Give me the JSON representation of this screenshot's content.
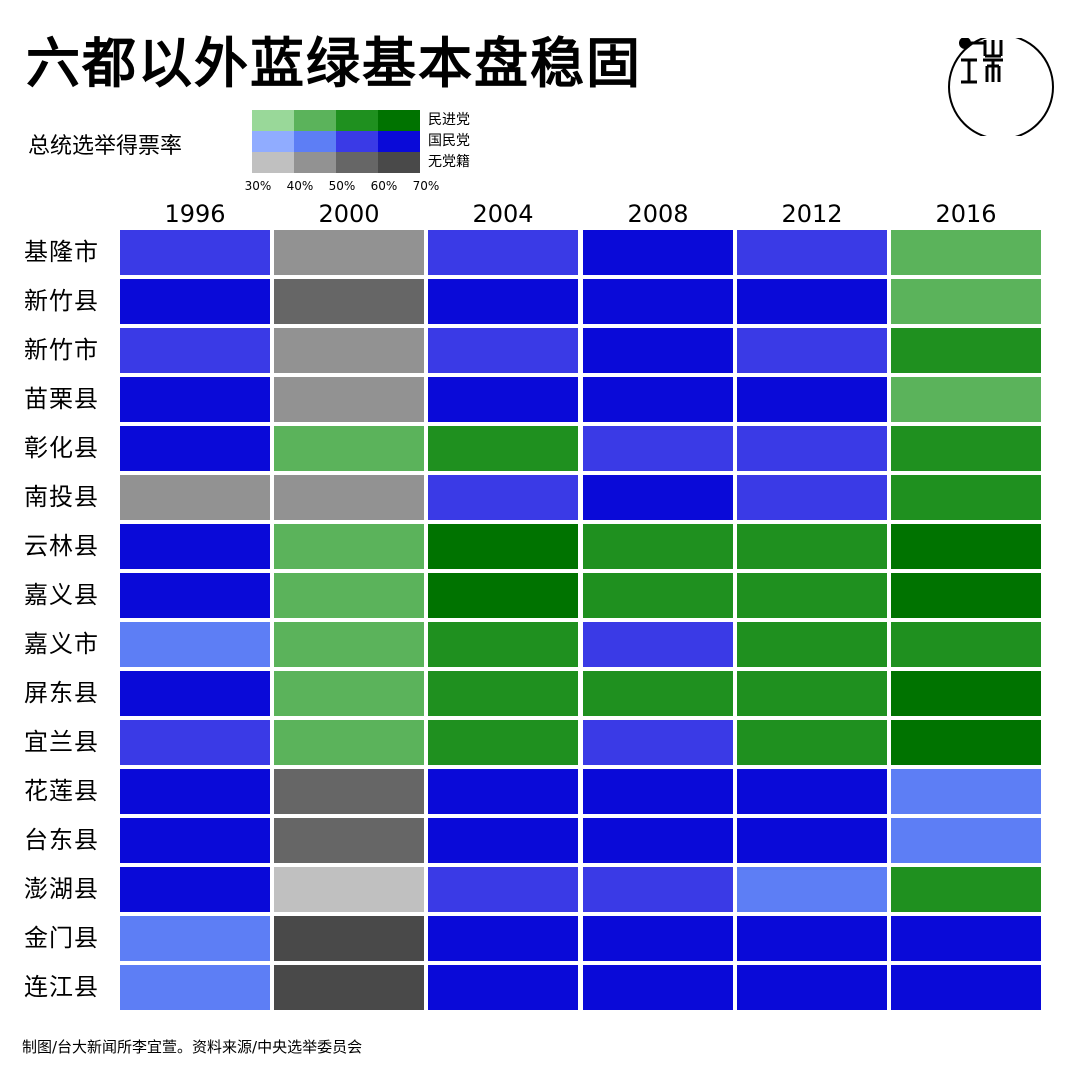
{
  "title": "六都以外蓝绿基本盘稳固",
  "legend": {
    "label": "总统选举得票率",
    "parties": [
      {
        "name": "民进党",
        "colors": [
          "#99d899",
          "#5bb35b",
          "#1f901f",
          "#007300"
        ]
      },
      {
        "name": "国民党",
        "colors": [
          "#90acff",
          "#5d7ef5",
          "#3a3ae6",
          "#0a0ad8"
        ]
      },
      {
        "name": "无党籍",
        "colors": [
          "#c0c0c0",
          "#929292",
          "#666666",
          "#494949"
        ]
      }
    ],
    "ticks": [
      "30%",
      "40%",
      "50%",
      "60%",
      "70%"
    ]
  },
  "footer": "制图/台大新闻所李宜萱。资料来源/中央选举委员会",
  "chart_data": {
    "type": "heatmap",
    "title": "六都以外蓝绿基本盘稳固",
    "x": [
      "1996",
      "2000",
      "2004",
      "2008",
      "2012",
      "2016"
    ],
    "y": [
      "基隆市",
      "新竹县",
      "新竹市",
      "苗栗县",
      "彰化县",
      "南投县",
      "云林县",
      "嘉义县",
      "嘉义市",
      "屏东县",
      "宜兰县",
      "花莲县",
      "台东县",
      "澎湖县",
      "金门县",
      "连江县"
    ],
    "value_encoding": "each cell = [winning party index (0=民进党, 1=国民党, 2=无党籍), vote-share band index (0=30-40%, 1=40-50%, 2=50-60%, 3=60-70%+)]",
    "cells": [
      [
        [
          1,
          2
        ],
        [
          2,
          1
        ],
        [
          1,
          2
        ],
        [
          1,
          3
        ],
        [
          1,
          2
        ],
        [
          0,
          1
        ]
      ],
      [
        [
          1,
          3
        ],
        [
          2,
          2
        ],
        [
          1,
          3
        ],
        [
          1,
          3
        ],
        [
          1,
          3
        ],
        [
          0,
          1
        ]
      ],
      [
        [
          1,
          2
        ],
        [
          2,
          1
        ],
        [
          1,
          2
        ],
        [
          1,
          3
        ],
        [
          1,
          2
        ],
        [
          0,
          2
        ]
      ],
      [
        [
          1,
          3
        ],
        [
          2,
          1
        ],
        [
          1,
          3
        ],
        [
          1,
          3
        ],
        [
          1,
          3
        ],
        [
          0,
          1
        ]
      ],
      [
        [
          1,
          3
        ],
        [
          0,
          1
        ],
        [
          0,
          2
        ],
        [
          1,
          2
        ],
        [
          1,
          2
        ],
        [
          0,
          2
        ]
      ],
      [
        [
          2,
          1
        ],
        [
          2,
          1
        ],
        [
          1,
          2
        ],
        [
          1,
          3
        ],
        [
          1,
          2
        ],
        [
          0,
          2
        ]
      ],
      [
        [
          1,
          3
        ],
        [
          0,
          1
        ],
        [
          0,
          3
        ],
        [
          0,
          2
        ],
        [
          0,
          2
        ],
        [
          0,
          3
        ]
      ],
      [
        [
          1,
          3
        ],
        [
          0,
          1
        ],
        [
          0,
          3
        ],
        [
          0,
          2
        ],
        [
          0,
          2
        ],
        [
          0,
          3
        ]
      ],
      [
        [
          1,
          1
        ],
        [
          0,
          1
        ],
        [
          0,
          2
        ],
        [
          1,
          2
        ],
        [
          0,
          2
        ],
        [
          0,
          2
        ]
      ],
      [
        [
          1,
          3
        ],
        [
          0,
          1
        ],
        [
          0,
          2
        ],
        [
          0,
          2
        ],
        [
          0,
          2
        ],
        [
          0,
          3
        ]
      ],
      [
        [
          1,
          2
        ],
        [
          0,
          1
        ],
        [
          0,
          2
        ],
        [
          1,
          2
        ],
        [
          0,
          2
        ],
        [
          0,
          3
        ]
      ],
      [
        [
          1,
          3
        ],
        [
          2,
          2
        ],
        [
          1,
          3
        ],
        [
          1,
          3
        ],
        [
          1,
          3
        ],
        [
          1,
          1
        ]
      ],
      [
        [
          1,
          3
        ],
        [
          2,
          2
        ],
        [
          1,
          3
        ],
        [
          1,
          3
        ],
        [
          1,
          3
        ],
        [
          1,
          1
        ]
      ],
      [
        [
          1,
          3
        ],
        [
          2,
          0
        ],
        [
          1,
          2
        ],
        [
          1,
          2
        ],
        [
          1,
          1
        ],
        [
          0,
          2
        ]
      ],
      [
        [
          1,
          1
        ],
        [
          2,
          3
        ],
        [
          1,
          3
        ],
        [
          1,
          3
        ],
        [
          1,
          3
        ],
        [
          1,
          3
        ]
      ],
      [
        [
          1,
          1
        ],
        [
          2,
          3
        ],
        [
          1,
          3
        ],
        [
          1,
          3
        ],
        [
          1,
          3
        ],
        [
          1,
          3
        ]
      ]
    ]
  }
}
